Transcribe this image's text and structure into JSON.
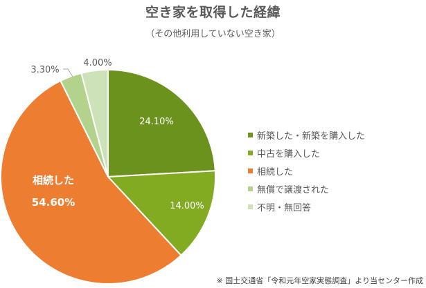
{
  "title": "空き家を取得した経緯",
  "subtitle": "（その他利用していない空き家）",
  "source": "※ 国土交通省「令和元年空家実態調査」より当センター作成",
  "chart_data": {
    "type": "pie",
    "title": "空き家を取得した経緯",
    "subtitle": "（その他利用していない空き家）",
    "categories": [
      "新築した・新築を購入した",
      "中古を購入した",
      "相続した",
      "無償で譲渡された",
      "不明・無回答"
    ],
    "values": [
      24.1,
      14.0,
      54.6,
      3.3,
      4.0
    ],
    "labels": [
      "24.10%",
      "14.00%",
      "54.60%",
      "3.30%",
      "4.00%"
    ],
    "colors": [
      "#6a921d",
      "#82ab22",
      "#ed7d31",
      "#b3d28c",
      "#cde2b8"
    ],
    "start_angle_deg": 0,
    "direction": "clockwise",
    "legend_position": "right",
    "annotation": "相続した"
  },
  "legend": [
    {
      "label": "新築した・新築を購入した",
      "color": "#6a921d"
    },
    {
      "label": "中古を購入した",
      "color": "#82ab22"
    },
    {
      "label": "相続した",
      "color": "#ed7d31"
    },
    {
      "label": "無償で譲渡された",
      "color": "#b3d28c"
    },
    {
      "label": "不明・無回答",
      "color": "#cde2b8"
    }
  ],
  "slice_labels": {
    "s0": "24.10%",
    "s1": "14.00%",
    "s2_name": "相続した",
    "s2": "54.60%",
    "s3": "3.30%",
    "s4": "4.00%"
  }
}
